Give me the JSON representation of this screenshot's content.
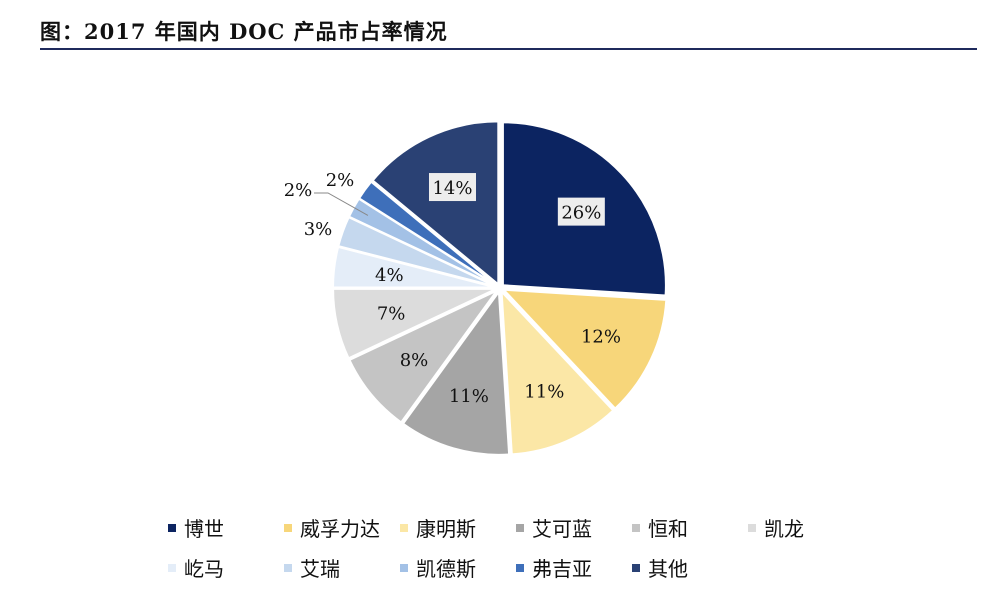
{
  "header": {
    "title": "图：2017 年国内 DOC 产品市占率情况"
  },
  "chart_data": {
    "type": "pie",
    "title": "图：2017 年国内 DOC 产品市占率情况",
    "unit": "%",
    "legend_position": "bottom",
    "slices": [
      {
        "name": "博世",
        "value": 26,
        "label": "26%",
        "color": "#0c2461"
      },
      {
        "name": "威孚力达",
        "value": 12,
        "label": "12%",
        "color": "#f7d67a"
      },
      {
        "name": "康明斯",
        "value": 11,
        "label": "11%",
        "color": "#fbe7a6"
      },
      {
        "name": "艾可蓝",
        "value": 11,
        "label": "11%",
        "color": "#a5a5a5"
      },
      {
        "name": "恒和",
        "value": 8,
        "label": "8%",
        "color": "#c4c4c4"
      },
      {
        "name": "凯龙",
        "value": 7,
        "label": "7%",
        "color": "#dcdcdc"
      },
      {
        "name": "屹马",
        "value": 4,
        "label": "4%",
        "color": "#e4edf8"
      },
      {
        "name": "艾瑞",
        "value": 3,
        "label": "3%",
        "color": "#c5d8ee"
      },
      {
        "name": "凯德斯",
        "value": 2,
        "label": "2%",
        "color": "#a3c1e6"
      },
      {
        "name": "弗吉亚",
        "value": 2,
        "label": "2%",
        "color": "#3e6fba"
      },
      {
        "name": "其他",
        "value": 14,
        "label": "14%",
        "color": "#2a4174"
      }
    ]
  }
}
